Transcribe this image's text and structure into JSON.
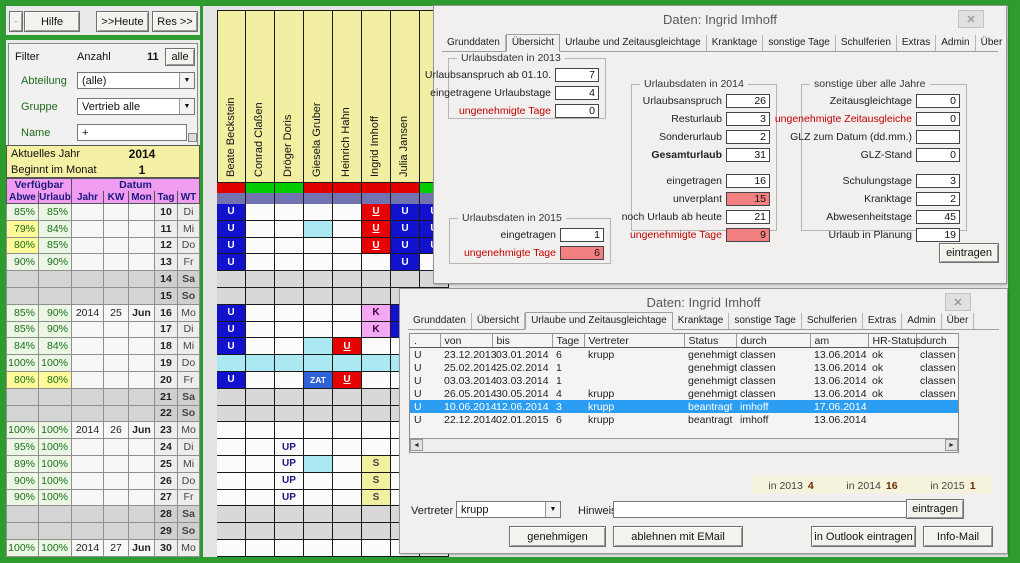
{
  "icons": {
    "close": "✕",
    "dropdown": "▼",
    "scroll_left": "◄",
    "scroll_right": "►",
    "corner": "·"
  },
  "colors": {
    "red": "#E00000",
    "green": "#00CC00",
    "purple": "#7173B1",
    "selection_blue": "#2B9EF4"
  },
  "left_panel": {
    "toolbar": {
      "corner": "·",
      "hilfe": "Hilfe",
      "heute": ">>Heute",
      "res": "Res >>"
    },
    "filter": {
      "filter_label": "Filter",
      "anzahl_label": "Anzahl",
      "anzahl_value": "11",
      "alle_button": "alle",
      "abteilung_label": "Abteilung",
      "abteilung_value": "(alle)",
      "gruppe_label": "Gruppe",
      "gruppe_value": "Vertrieb alle",
      "name_label": "Name",
      "name_value": "+"
    },
    "year": {
      "aktuelles_jahr_label": "Aktuelles Jahr",
      "aktuelles_jahr_value": "2014",
      "beginnt_label": "Beginnt im Monat",
      "beginnt_value": "1"
    },
    "table": {
      "group_headers": [
        "Verfügbar",
        "Datum"
      ],
      "headers": [
        "Abwe",
        "Urlaub",
        "Jahr",
        "KW",
        "Mon",
        "Tag",
        "WT"
      ],
      "rows": [
        {
          "abwe": "85%",
          "urlaub": "85%",
          "jahr": "",
          "kw": "",
          "mon": "",
          "tag": "10",
          "wt": "Di",
          "weekend": false,
          "abwe_yellow": false,
          "urlaub_yellow": false
        },
        {
          "abwe": "79%",
          "urlaub": "84%",
          "jahr": "",
          "kw": "",
          "mon": "",
          "tag": "11",
          "wt": "Mi",
          "weekend": false,
          "abwe_yellow": true,
          "urlaub_yellow": false
        },
        {
          "abwe": "80%",
          "urlaub": "85%",
          "jahr": "",
          "kw": "",
          "mon": "",
          "tag": "12",
          "wt": "Do",
          "weekend": false,
          "abwe_yellow": true,
          "urlaub_yellow": false
        },
        {
          "abwe": "90%",
          "urlaub": "90%",
          "jahr": "",
          "kw": "",
          "mon": "",
          "tag": "13",
          "wt": "Fr",
          "weekend": false,
          "abwe_yellow": false,
          "urlaub_yellow": false
        },
        {
          "abwe": "",
          "urlaub": "",
          "jahr": "",
          "kw": "",
          "mon": "",
          "tag": "14",
          "wt": "Sa",
          "weekend": true,
          "abwe_yellow": false,
          "urlaub_yellow": false
        },
        {
          "abwe": "",
          "urlaub": "",
          "jahr": "",
          "kw": "",
          "mon": "",
          "tag": "15",
          "wt": "So",
          "weekend": true,
          "abwe_yellow": false,
          "urlaub_yellow": false
        },
        {
          "abwe": "85%",
          "urlaub": "90%",
          "jahr": "2014",
          "kw": "25",
          "mon": "Jun",
          "tag": "16",
          "wt": "Mo",
          "weekend": false,
          "abwe_yellow": false,
          "urlaub_yellow": false
        },
        {
          "abwe": "85%",
          "urlaub": "90%",
          "jahr": "",
          "kw": "",
          "mon": "",
          "tag": "17",
          "wt": "Di",
          "weekend": false,
          "abwe_yellow": false,
          "urlaub_yellow": false
        },
        {
          "abwe": "84%",
          "urlaub": "84%",
          "jahr": "",
          "kw": "",
          "mon": "",
          "tag": "18",
          "wt": "Mi",
          "weekend": false,
          "abwe_yellow": false,
          "urlaub_yellow": false
        },
        {
          "abwe": "100%",
          "urlaub": "100%",
          "jahr": "",
          "kw": "",
          "mon": "",
          "tag": "19",
          "wt": "Do",
          "weekend": false,
          "abwe_yellow": false,
          "urlaub_yellow": false
        },
        {
          "abwe": "80%",
          "urlaub": "80%",
          "jahr": "",
          "kw": "",
          "mon": "",
          "tag": "20",
          "wt": "Fr",
          "weekend": false,
          "abwe_yellow": true,
          "urlaub_yellow": true
        },
        {
          "abwe": "",
          "urlaub": "",
          "jahr": "",
          "kw": "",
          "mon": "",
          "tag": "21",
          "wt": "Sa",
          "weekend": true,
          "abwe_yellow": false,
          "urlaub_yellow": false
        },
        {
          "abwe": "",
          "urlaub": "",
          "jahr": "",
          "kw": "",
          "mon": "",
          "tag": "22",
          "wt": "So",
          "weekend": true,
          "abwe_yellow": false,
          "urlaub_yellow": false
        },
        {
          "abwe": "100%",
          "urlaub": "100%",
          "jahr": "2014",
          "kw": "26",
          "mon": "Jun",
          "tag": "23",
          "wt": "Mo",
          "weekend": false,
          "abwe_yellow": false,
          "urlaub_yellow": false
        },
        {
          "abwe": "95%",
          "urlaub": "100%",
          "jahr": "",
          "kw": "",
          "mon": "",
          "tag": "24",
          "wt": "Di",
          "weekend": false,
          "abwe_yellow": false,
          "urlaub_yellow": false
        },
        {
          "abwe": "89%",
          "urlaub": "100%",
          "jahr": "",
          "kw": "",
          "mon": "",
          "tag": "25",
          "wt": "Mi",
          "weekend": false,
          "abwe_yellow": false,
          "urlaub_yellow": false
        },
        {
          "abwe": "90%",
          "urlaub": "100%",
          "jahr": "",
          "kw": "",
          "mon": "",
          "tag": "26",
          "wt": "Do",
          "weekend": false,
          "abwe_yellow": false,
          "urlaub_yellow": false
        },
        {
          "abwe": "90%",
          "urlaub": "100%",
          "jahr": "",
          "kw": "",
          "mon": "",
          "tag": "27",
          "wt": "Fr",
          "weekend": false,
          "abwe_yellow": false,
          "urlaub_yellow": false
        },
        {
          "abwe": "",
          "urlaub": "",
          "jahr": "",
          "kw": "",
          "mon": "",
          "tag": "28",
          "wt": "Sa",
          "weekend": true,
          "abwe_yellow": false,
          "urlaub_yellow": false
        },
        {
          "abwe": "",
          "urlaub": "",
          "jahr": "",
          "kw": "",
          "mon": "",
          "tag": "29",
          "wt": "So",
          "weekend": true,
          "abwe_yellow": false,
          "urlaub_yellow": false
        },
        {
          "abwe": "100%",
          "urlaub": "100%",
          "jahr": "2014",
          "kw": "27",
          "mon": "Jun",
          "tag": "30",
          "wt": "Mo",
          "weekend": false,
          "abwe_yellow": false,
          "urlaub_yellow": false
        }
      ]
    }
  },
  "calendar": {
    "names": [
      "Beate Beckstein",
      "Conrad Claßen",
      "Dröger Doris",
      "Giesela Gruber",
      "Heinrich Hahn",
      "Ingrid Imhoff",
      "Julia Jansen",
      ""
    ],
    "status_top": [
      "red",
      "green",
      "green",
      "red",
      "red",
      "red",
      "red",
      "green"
    ],
    "rows": [
      {
        "weekend": false,
        "cells": [
          "U",
          "",
          "",
          "",
          "",
          "UR",
          "U",
          "U"
        ]
      },
      {
        "weekend": false,
        "cells": [
          "U",
          "",
          "",
          "C",
          "",
          "UR",
          "U",
          "U"
        ]
      },
      {
        "weekend": false,
        "cells": [
          "U",
          "",
          "",
          "",
          "",
          "UR",
          "U",
          "U"
        ]
      },
      {
        "weekend": false,
        "cells": [
          "U",
          "",
          "",
          "",
          "",
          "",
          "U",
          ""
        ]
      },
      {
        "weekend": true,
        "cells": [
          "",
          "",
          "",
          "",
          "",
          "",
          "",
          ""
        ]
      },
      {
        "weekend": true,
        "cells": [
          "",
          "",
          "",
          "",
          "",
          "",
          "",
          ""
        ]
      },
      {
        "weekend": false,
        "cells": [
          "U",
          "",
          "",
          "",
          "",
          "K",
          "U",
          ""
        ]
      },
      {
        "weekend": false,
        "cells": [
          "U",
          "",
          "",
          "",
          "",
          "K",
          "U",
          ""
        ]
      },
      {
        "weekend": false,
        "cells": [
          "U",
          "",
          "",
          "C",
          "UR",
          "",
          "",
          ""
        ]
      },
      {
        "weekend": false,
        "cells": [
          "C",
          "C",
          "C",
          "C",
          "C",
          "C",
          "C",
          "C"
        ]
      },
      {
        "weekend": false,
        "cells": [
          "U",
          "",
          "",
          "ZAT",
          "UR",
          "",
          "",
          ""
        ]
      },
      {
        "weekend": true,
        "cells": [
          "",
          "",
          "",
          "",
          "",
          "",
          "",
          ""
        ]
      },
      {
        "weekend": true,
        "cells": [
          "",
          "",
          "",
          "",
          "",
          "",
          "",
          ""
        ]
      },
      {
        "weekend": false,
        "cells": [
          "",
          "",
          "",
          "",
          "",
          "",
          "",
          ""
        ]
      },
      {
        "weekend": false,
        "cells": [
          "",
          "",
          "UP",
          "",
          "",
          "",
          "",
          ""
        ]
      },
      {
        "weekend": false,
        "cells": [
          "",
          "",
          "UP",
          "C",
          "",
          "S",
          "",
          ""
        ]
      },
      {
        "weekend": false,
        "cells": [
          "",
          "",
          "UP",
          "",
          "",
          "S",
          "",
          ""
        ]
      },
      {
        "weekend": false,
        "cells": [
          "",
          "",
          "UP",
          "",
          "",
          "S",
          "",
          ""
        ]
      },
      {
        "weekend": true,
        "cells": [
          "",
          "",
          "",
          "",
          "",
          "",
          "",
          ""
        ]
      },
      {
        "weekend": true,
        "cells": [
          "",
          "",
          "",
          "",
          "",
          "",
          "",
          ""
        ]
      },
      {
        "weekend": false,
        "cells": [
          "",
          "",
          "",
          "",
          "",
          "",
          "",
          ""
        ]
      }
    ]
  },
  "dialog_overview": {
    "title": "Daten: Ingrid Imhoff",
    "tabs": [
      "Grunddaten",
      "Übersicht",
      "Urlaube und Zeitausgleichtage",
      "Kranktage",
      "sonstige Tage",
      "Schulferien",
      "Extras",
      "Admin",
      "Über"
    ],
    "active_tab": "Übersicht",
    "groups": {
      "g2013": {
        "title": "Urlaubsdaten in 2013",
        "fields": [
          {
            "label": "Urlaubsanspruch ab 01.10.",
            "value": "7"
          },
          {
            "label": "eingetragene Urlaubstage",
            "value": "4"
          },
          {
            "label": "ungenehmigte Tage",
            "value": "0",
            "red_label": true
          }
        ]
      },
      "g2014": {
        "title": "Urlaubsdaten in 2014",
        "fields": [
          {
            "label": "Urlaubsanspruch",
            "value": "26"
          },
          {
            "label": "Resturlaub",
            "value": "3"
          },
          {
            "label": "Sonderurlaub",
            "value": "2"
          },
          {
            "label": "Gesamturlaub",
            "value": "31",
            "bold": true
          },
          {
            "label": "eingetragen",
            "value": "16",
            "gap": true
          },
          {
            "label": "unverplant",
            "value": "15",
            "red_value": true
          },
          {
            "label": "noch Urlaub ab heute",
            "value": "21"
          },
          {
            "label": "ungenehmigte Tage",
            "value": "9",
            "red_label": true,
            "red_value": true
          }
        ]
      },
      "gsonst": {
        "title": "sonstige über alle Jahre",
        "fields": [
          {
            "label": "Zeitausgleichtage",
            "value": "0"
          },
          {
            "label": "ungenehmigte Zeitausgleiche",
            "value": "0",
            "red_label": true
          },
          {
            "label": "GLZ zum Datum (dd.mm.)",
            "value": ""
          },
          {
            "label": "GLZ-Stand",
            "value": "0"
          },
          {
            "label": "Schulungstage",
            "value": "3",
            "gap": true
          },
          {
            "label": "Kranktage",
            "value": "2"
          },
          {
            "label": "Abwesenheitstage",
            "value": "45"
          },
          {
            "label": "Urlaub in Planung",
            "value": "19"
          }
        ]
      },
      "g2015": {
        "title": "Urlaubsdaten in 2015",
        "fields": [
          {
            "label": "eingetragen",
            "value": "1"
          },
          {
            "label": "ungenehmigte Tage",
            "value": "6",
            "red_label": true,
            "red_value": true
          }
        ]
      }
    },
    "eintragen_button": "eintragen"
  },
  "dialog_details": {
    "title": "Daten: Ingrid Imhoff",
    "tabs": [
      "Grunddaten",
      "Übersicht",
      "Urlaube und Zeitausgleichtage",
      "Kranktage",
      "sonstige Tage",
      "Schulferien",
      "Extras",
      "Admin",
      "Über"
    ],
    "active_tab": "Urlaube und Zeitausgleichtage",
    "table": {
      "headers": [
        ".",
        "von",
        "bis",
        "Tage",
        "Vertreter",
        "Status",
        "durch",
        "am",
        "HR-Status",
        "durch"
      ],
      "rows": [
        [
          "U",
          "23.12.2013",
          "03.01.2014",
          "6",
          "krupp",
          "genehmigt",
          "classen",
          "13.06.2014",
          "ok",
          "classen"
        ],
        [
          "U",
          "25.02.2014",
          "25.02.2014",
          "1",
          "",
          "genehmigt",
          "classen",
          "13.06.2014",
          "ok",
          "classen"
        ],
        [
          "U",
          "03.03.2014",
          "03.03.2014",
          "1",
          "",
          "genehmigt",
          "classen",
          "13.06.2014",
          "ok",
          "classen"
        ],
        [
          "U",
          "26.05.2014",
          "30.05.2014",
          "4",
          "krupp",
          "genehmigt",
          "classen",
          "13.06.2014",
          "ok",
          "classen"
        ],
        [
          "U",
          "10.06.2014",
          "12.06.2014",
          "3",
          "krupp",
          "beantragt",
          "imhoff",
          "17.06.2014",
          "",
          ""
        ],
        [
          "U",
          "22.12.2014",
          "02.01.2015",
          "6",
          "krupp",
          "beantragt",
          "imhoff",
          "13.06.2014",
          "",
          ""
        ]
      ],
      "selected_row": 4
    },
    "summary": [
      {
        "label": "in 2013",
        "value": "4"
      },
      {
        "label": "in 2014",
        "value": "16"
      },
      {
        "label": "in 2015",
        "value": "1"
      }
    ],
    "vertreter_label": "Vertreter",
    "vertreter_value": "krupp",
    "hinweis_label": "Hinweis",
    "hinweis_value": "",
    "buttons": {
      "genehmigen": "genehmigen",
      "ablehnen": "ablehnen mit EMail",
      "eintragen": "eintragen",
      "outlook": "in Outlook eintragen",
      "infomail": "Info-Mail"
    }
  }
}
